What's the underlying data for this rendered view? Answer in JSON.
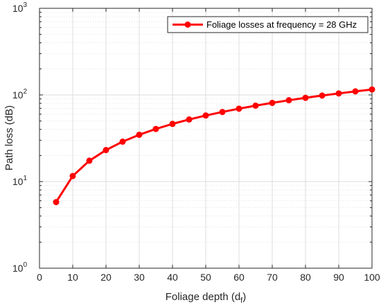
{
  "chart_data": {
    "type": "line",
    "title": "",
    "xlabel": "Foliage depth (d",
    "xlabel_sub": "f",
    "xlabel_close": ")",
    "ylabel": "Path loss (dB)",
    "xlim": [
      0,
      100
    ],
    "ylim": [
      1,
      1000
    ],
    "yscale": "log",
    "grid": true,
    "x_ticks": [
      "0",
      "10",
      "20",
      "30",
      "40",
      "50",
      "60",
      "70",
      "80",
      "90",
      "100"
    ],
    "y_tick_exponents": [
      "0",
      "1",
      "2",
      "3"
    ],
    "y_tick_base": "10",
    "legend_position": "top-right",
    "series": [
      {
        "name": "Foliage losses at frequency = 28 GHz",
        "color": "#ff0000",
        "marker": "circle",
        "x": [
          5,
          10,
          15,
          20,
          25,
          30,
          35,
          40,
          45,
          50,
          55,
          60,
          65,
          70,
          75,
          80,
          85,
          90,
          95,
          100
        ],
        "y": [
          5.8,
          11.6,
          17.4,
          23.1,
          28.9,
          34.7,
          40.5,
          46.3,
          52.1,
          57.9,
          63.6,
          69.4,
          75.2,
          81.0,
          86.8,
          92.6,
          98.4,
          104.1,
          109.9,
          115.7
        ]
      }
    ]
  }
}
